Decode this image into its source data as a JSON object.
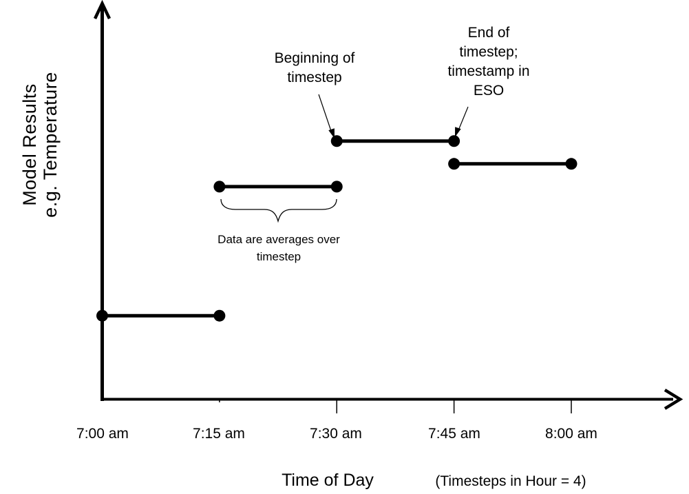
{
  "chart_data": {
    "type": "line",
    "title": "",
    "xlabel": "Time of Day",
    "xlabel_note": "(Timesteps in Hour = 4)",
    "ylabel_lines": [
      "Model Results",
      "e.g. Temperature"
    ],
    "x_tick_labels": [
      "7:00 am",
      "7:15 am",
      "7:30 am",
      "7:45 am",
      "8:00 am"
    ],
    "x_tick_minutes": [
      0,
      15,
      30,
      45,
      60
    ],
    "x_range_minutes": [
      0,
      60
    ],
    "grid": false,
    "legend": false,
    "series_description": "Four horizontal timestep-average segments with filled endpoint dots; level is relative height on unnumbered y-axis",
    "segments": [
      {
        "start": "7:00 am",
        "end": "7:15 am",
        "start_min": 0,
        "end_min": 15,
        "level": 0.21
      },
      {
        "start": "7:15 am",
        "end": "7:30 am",
        "start_min": 15,
        "end_min": 30,
        "level": 0.533
      },
      {
        "start": "7:30 am",
        "end": "7:45 am",
        "start_min": 30,
        "end_min": 45,
        "level": 0.647
      },
      {
        "start": "7:45 am",
        "end": "8:00 am",
        "start_min": 45,
        "end_min": 60,
        "level": 0.59
      }
    ],
    "annotations": [
      {
        "id": "beginning",
        "text": "Beginning of timestep",
        "points_to": "left end of 7:30-7:45 segment"
      },
      {
        "id": "end",
        "text": "End of timestep; timestamp in ESO",
        "points_to": "right end of 7:30-7:45 segment"
      },
      {
        "id": "averages",
        "text": "Data are averages over timestep",
        "points_to": "7:15-7:30 segment under curly brace"
      }
    ],
    "colors": {
      "ink": "#000000",
      "background": "#ffffff"
    }
  }
}
